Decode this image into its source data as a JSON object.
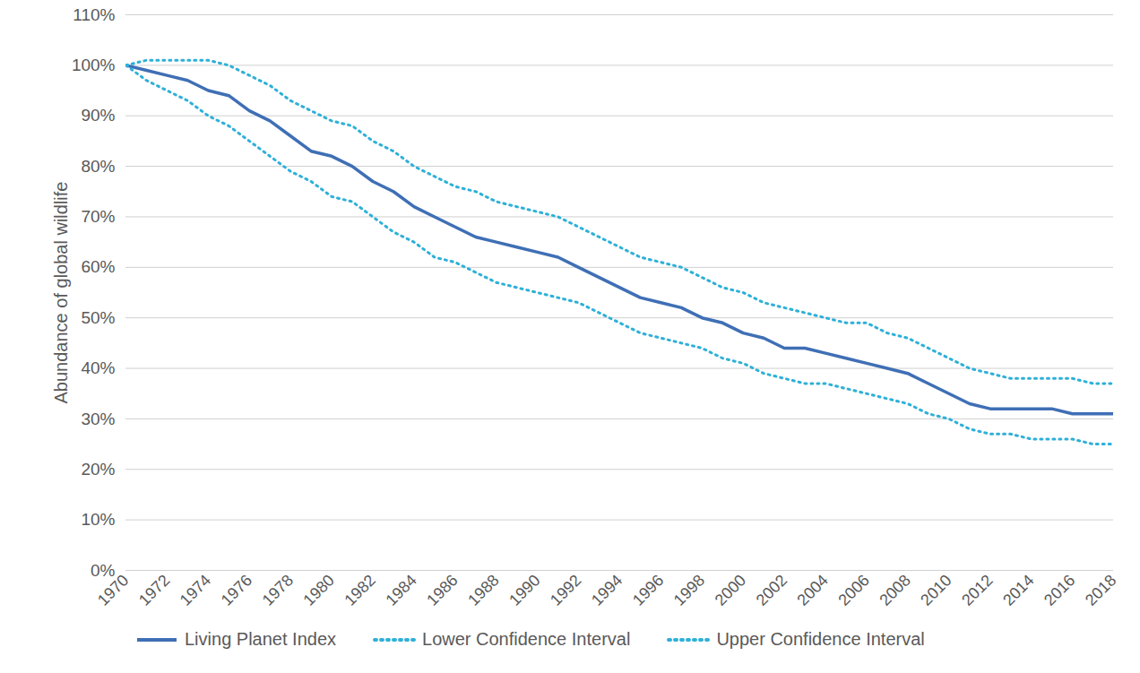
{
  "chart_data": {
    "type": "line",
    "y_label": "Abundance of global wildlife",
    "x": [
      1970,
      1971,
      1972,
      1973,
      1974,
      1975,
      1976,
      1977,
      1978,
      1979,
      1980,
      1981,
      1982,
      1983,
      1984,
      1985,
      1986,
      1987,
      1988,
      1989,
      1990,
      1991,
      1992,
      1993,
      1994,
      1995,
      1996,
      1997,
      1998,
      1999,
      2000,
      2001,
      2002,
      2003,
      2004,
      2005,
      2006,
      2007,
      2008,
      2009,
      2010,
      2011,
      2012,
      2013,
      2014,
      2015,
      2016,
      2017,
      2018
    ],
    "series": [
      {
        "name": "Living Planet Index",
        "color": "#3f6fb5",
        "line_style": "solid",
        "values": [
          100,
          99,
          98,
          97,
          95,
          94,
          91,
          89,
          86,
          83,
          82,
          80,
          77,
          75,
          72,
          70,
          68,
          66,
          65,
          64,
          63,
          62,
          60,
          58,
          56,
          54,
          53,
          52,
          50,
          49,
          47,
          46,
          44,
          44,
          43,
          42,
          41,
          40,
          39,
          37,
          35,
          33,
          32,
          32,
          32,
          32,
          31,
          31,
          31
        ]
      },
      {
        "name": "Lower Confidence Interval",
        "color": "#2eb0d8",
        "line_style": "dotted",
        "values": [
          100,
          97,
          95,
          93,
          90,
          88,
          85,
          82,
          79,
          77,
          74,
          73,
          70,
          67,
          65,
          62,
          61,
          59,
          57,
          56,
          55,
          54,
          53,
          51,
          49,
          47,
          46,
          45,
          44,
          42,
          41,
          39,
          38,
          37,
          37,
          36,
          35,
          34,
          33,
          31,
          30,
          28,
          27,
          27,
          26,
          26,
          26,
          25,
          25
        ]
      },
      {
        "name": "Upper Confidence Interval",
        "color": "#2eb0d8",
        "line_style": "dotted",
        "values": [
          100,
          101,
          101,
          101,
          101,
          100,
          98,
          96,
          93,
          91,
          89,
          88,
          85,
          83,
          80,
          78,
          76,
          75,
          73,
          72,
          71,
          70,
          68,
          66,
          64,
          62,
          61,
          60,
          58,
          56,
          55,
          53,
          52,
          51,
          50,
          49,
          49,
          47,
          46,
          44,
          42,
          40,
          39,
          38,
          38,
          38,
          38,
          37,
          37
        ]
      }
    ],
    "xlim": [
      1970,
      2018
    ],
    "xticks": [
      1970,
      1972,
      1974,
      1976,
      1978,
      1980,
      1982,
      1984,
      1986,
      1988,
      1990,
      1992,
      1994,
      1996,
      1998,
      2000,
      2002,
      2004,
      2006,
      2008,
      2010,
      2012,
      2014,
      2016,
      2018
    ],
    "ylim": [
      0,
      110
    ],
    "yticks": [
      {
        "value": 0,
        "label": "0%"
      },
      {
        "value": 10,
        "label": "10%"
      },
      {
        "value": 20,
        "label": "20%"
      },
      {
        "value": 30,
        "label": "30%"
      },
      {
        "value": 40,
        "label": "40%"
      },
      {
        "value": 50,
        "label": "50%"
      },
      {
        "value": 60,
        "label": "60%"
      },
      {
        "value": 70,
        "label": "70%"
      },
      {
        "value": 80,
        "label": "80%"
      },
      {
        "value": 90,
        "label": "90%"
      },
      {
        "value": 100,
        "label": "100%"
      },
      {
        "value": 110,
        "label": "110%"
      }
    ],
    "grid": true,
    "legend": "bottom"
  }
}
